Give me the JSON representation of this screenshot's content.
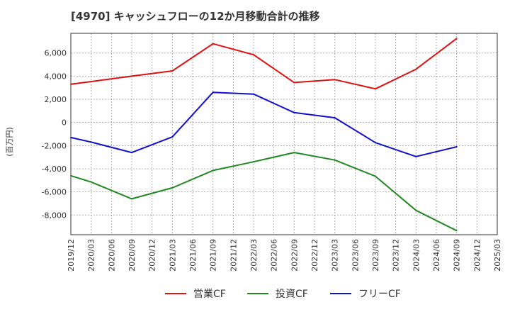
{
  "chart_data": {
    "type": "line",
    "title": "[4970]  キャッシュフローの12か月移動合計の推移",
    "ylabel": "(百万円)",
    "xlabel": "",
    "x_categories": [
      "2019/12",
      "2020/03",
      "2020/06",
      "2020/09",
      "2020/12",
      "2021/03",
      "2021/06",
      "2021/09",
      "2021/12",
      "2022/03",
      "2022/06",
      "2022/09",
      "2022/12",
      "2023/03",
      "2023/06",
      "2023/09",
      "2023/12",
      "2024/03",
      "2024/06",
      "2024/09",
      "2024/12",
      "2025/03"
    ],
    "ylim": [
      -9700,
      7700
    ],
    "y_ticks": [
      -8000,
      -6000,
      -4000,
      -2000,
      0,
      2000,
      4000,
      6000
    ],
    "y_tick_labels": [
      "-8,000",
      "-6,000",
      "-4,000",
      "-2,000",
      "0",
      "2,000",
      "4,000",
      "6,000"
    ],
    "grid": true,
    "legend_position": "bottom",
    "series": [
      {
        "name": "営業CF",
        "color": "#dd1111",
        "points": [
          [
            "2019/12",
            3300
          ],
          [
            "2020/09",
            4000
          ],
          [
            "2021/03",
            4450
          ],
          [
            "2021/09",
            6800
          ],
          [
            "2022/03",
            5850
          ],
          [
            "2022/09",
            3450
          ],
          [
            "2023/03",
            3700
          ],
          [
            "2023/09",
            2900
          ],
          [
            "2024/03",
            4600
          ],
          [
            "2024/09",
            7250
          ]
        ]
      },
      {
        "name": "投資CF",
        "color": "#228822",
        "points": [
          [
            "2019/12",
            -4600
          ],
          [
            "2020/03",
            -5150
          ],
          [
            "2020/09",
            -6600
          ],
          [
            "2021/03",
            -5650
          ],
          [
            "2021/09",
            -4150
          ],
          [
            "2022/03",
            -3400
          ],
          [
            "2022/09",
            -2600
          ],
          [
            "2023/03",
            -3250
          ],
          [
            "2023/09",
            -4650
          ],
          [
            "2024/03",
            -7600
          ],
          [
            "2024/09",
            -9350
          ]
        ]
      },
      {
        "name": "フリーCF",
        "color": "#1111cc",
        "points": [
          [
            "2019/12",
            -1300
          ],
          [
            "2020/03",
            -1700
          ],
          [
            "2020/09",
            -2600
          ],
          [
            "2021/03",
            -1250
          ],
          [
            "2021/09",
            2600
          ],
          [
            "2022/03",
            2450
          ],
          [
            "2022/09",
            850
          ],
          [
            "2023/03",
            400
          ],
          [
            "2023/09",
            -1750
          ],
          [
            "2024/03",
            -2950
          ],
          [
            "2024/09",
            -2100
          ]
        ]
      }
    ]
  }
}
